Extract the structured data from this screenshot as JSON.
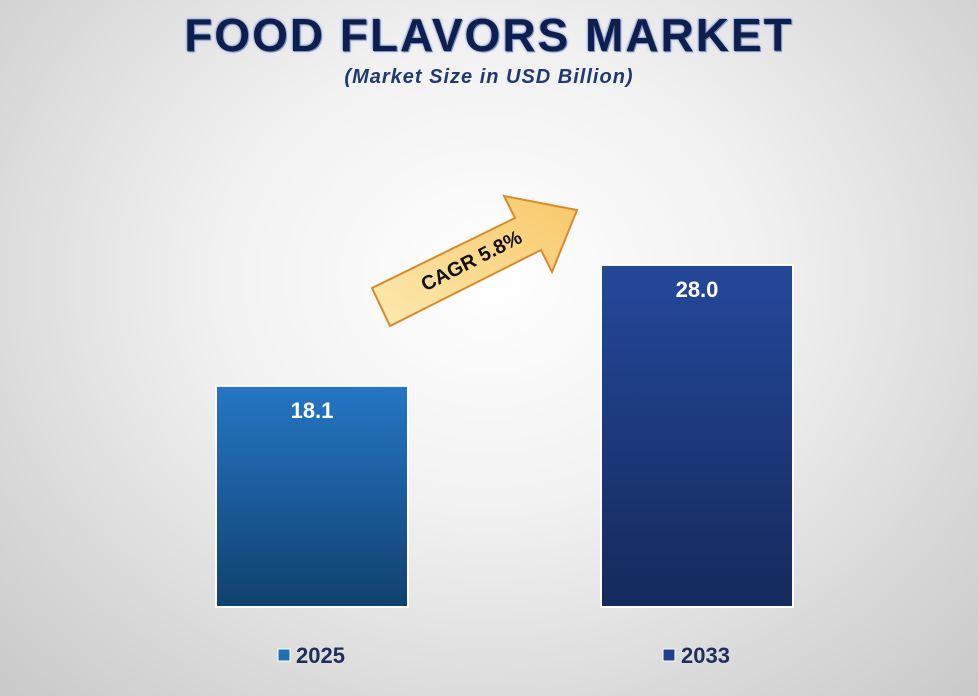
{
  "chart_data": {
    "type": "bar",
    "title": "FOOD FLAVORS MARKET",
    "subtitle": "(Market Size in USD Billion)",
    "categories": [
      "2025",
      "2033"
    ],
    "values": [
      18.1,
      28.0
    ],
    "data_labels": [
      "18.1",
      "28.0"
    ],
    "colors": [
      "#1f6fb5",
      "#1f3f8f"
    ],
    "ylim": [
      0,
      35.2
    ],
    "grid": false,
    "legend_position": "bottom",
    "annotation": "CAGR 5.8%"
  }
}
